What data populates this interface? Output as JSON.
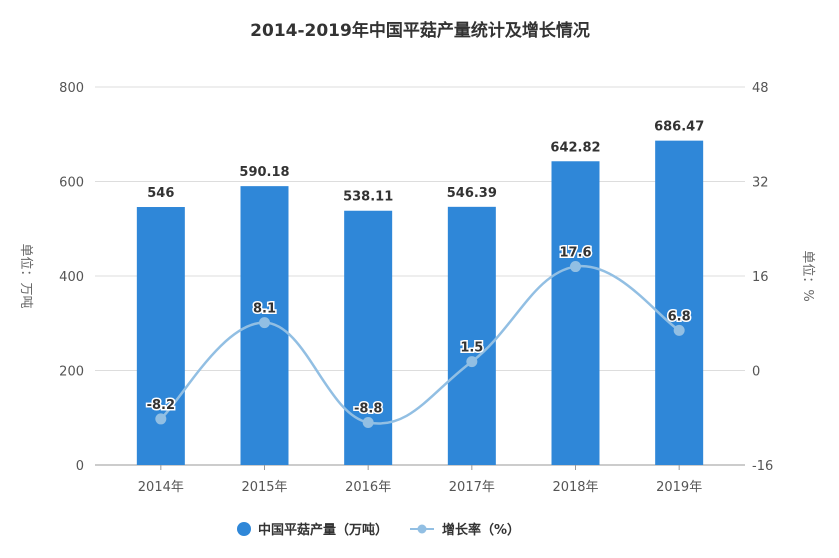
{
  "chart_data": {
    "type": "bar+line",
    "title": "2014-2019年中国平菇产量统计及增长情况",
    "categories": [
      "2014年",
      "2015年",
      "2016年",
      "2017年",
      "2018年",
      "2019年"
    ],
    "series": [
      {
        "name": "中国平菇产量（万吨）",
        "type": "bar",
        "axis": "left",
        "color": "#2f87d8",
        "values": [
          546,
          590.18,
          538.11,
          546.39,
          642.82,
          686.47
        ],
        "labels": [
          "546",
          "590.18",
          "538.11",
          "546.39",
          "642.82",
          "686.47"
        ]
      },
      {
        "name": "增长率（%）",
        "type": "line",
        "axis": "right",
        "color": "#92bfe3",
        "values": [
          -8.2,
          8.1,
          -8.8,
          1.5,
          17.6,
          6.8
        ],
        "labels": [
          "-8.2",
          "8.1",
          "-8.8",
          "1.5",
          "17.6",
          "6.8"
        ]
      }
    ],
    "ylabel_left": "单位：万吨",
    "ylabel_right": "单位：%",
    "ylim_left": [
      0,
      800
    ],
    "yticks_left": [
      "0",
      "200",
      "400",
      "600",
      "800"
    ],
    "ylim_right": [
      -16,
      48
    ],
    "yticks_right": [
      "-16",
      "0",
      "16",
      "32",
      "48"
    ],
    "grid": true,
    "legend_position": "bottom"
  }
}
